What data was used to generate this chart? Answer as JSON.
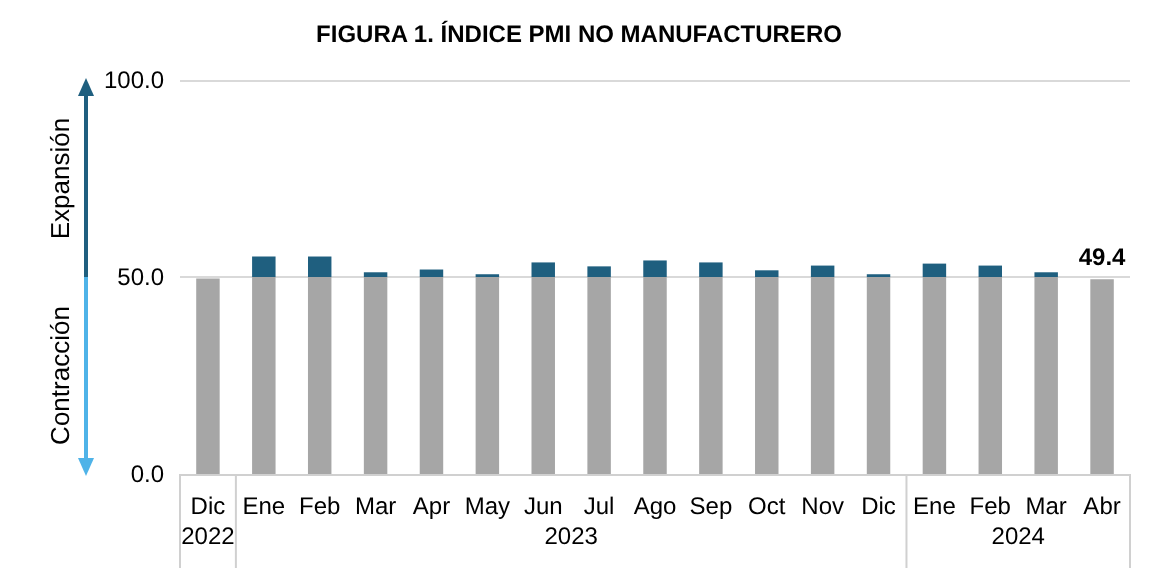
{
  "chart_data": {
    "type": "bar",
    "stacked": true,
    "title": "FIGURA 1. ÍNDICE PMI NO MANUFACTURERO",
    "categories": [
      "Dic",
      "Ene",
      "Feb",
      "Mar",
      "Apr",
      "May",
      "Jun",
      "Jul",
      "Ago",
      "Sep",
      "Oct",
      "Nov",
      "Dic",
      "Ene",
      "Feb",
      "Mar",
      "Abr"
    ],
    "series": [
      {
        "color": "#a6a6a6",
        "values": [
          49.6,
          50,
          50,
          50,
          50,
          50,
          50,
          50,
          50,
          50,
          50,
          50,
          50,
          50,
          50,
          50,
          49.4
        ],
        "value_labels": [
          null,
          null,
          null,
          null,
          null,
          null,
          null,
          null,
          null,
          null,
          null,
          null,
          null,
          null,
          null,
          null,
          "49.4"
        ]
      },
      {
        "color": "#1f5f7f",
        "values": [
          null,
          5.2,
          5.2,
          1.2,
          1.9,
          0.7,
          3.7,
          2.7,
          4.2,
          3.7,
          1.7,
          2.9,
          0.7,
          3.4,
          2.9,
          1.2,
          null
        ]
      }
    ],
    "ylim": [
      0,
      100
    ],
    "yticks": [
      {
        "value": 0,
        "label": "0.0"
      },
      {
        "value": 50,
        "label": "50.0"
      },
      {
        "value": 100,
        "label": "100.0"
      }
    ],
    "grid": "y",
    "annotations": [
      "Expansión",
      "Contracción",
      "2022",
      "2023",
      "2024"
    ]
  }
}
